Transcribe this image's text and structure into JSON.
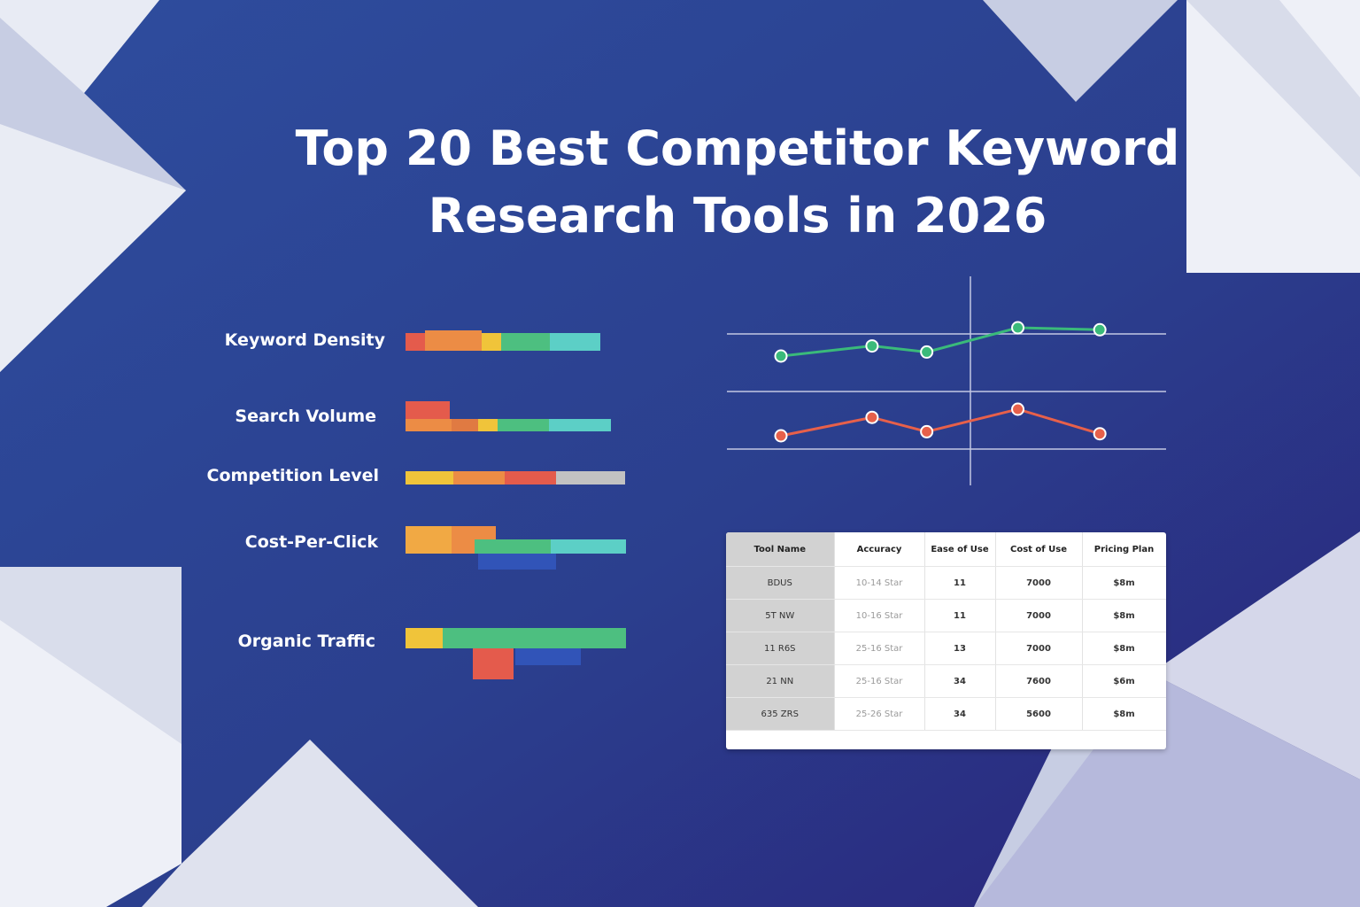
{
  "title": {
    "line1": "Top 20 Best Competitor Keyword",
    "line2": "Research Tools in 2026"
  },
  "colors": {
    "background": "#2c3f8f",
    "red": "#e45b4c",
    "orange": "#ec8c45",
    "yellow": "#f0c43a",
    "green": "#4dbf80",
    "teal": "#5ccfc6",
    "gray": "#c2c2c2",
    "blue": "#3154b8",
    "line_green": "#3aba7a",
    "line_red": "#e7604a"
  },
  "bars": [
    {
      "label": "Keyword Density"
    },
    {
      "label": "Search Volume"
    },
    {
      "label": "Competition Level"
    },
    {
      "label": "Cost-Per-Click"
    },
    {
      "label": "Organic Traffic"
    }
  ],
  "chart_data": {
    "type": "line",
    "series": [
      {
        "values": [
          1.0,
          1.5,
          1.2,
          2.4,
          2.3
        ],
        "color": "#3aba7a"
      },
      {
        "values": [
          1.0,
          1.9,
          1.2,
          2.3,
          1.1
        ],
        "color": "#e7604a"
      }
    ],
    "x_positions": [
      1,
      2,
      2.6,
      3.6,
      4.5
    ]
  },
  "table": {
    "headers": [
      "Tool Name",
      "Accuracy",
      "Ease of Use",
      "Cost of Use",
      "Pricing Plan"
    ],
    "rows": [
      [
        "BDUS",
        "10-14 Star",
        "11",
        "7000",
        "$8m"
      ],
      [
        "5T NW",
        "10-16 Star",
        "11",
        "7000",
        "$8m"
      ],
      [
        "11 R6S",
        "25-16 Star",
        "13",
        "7000",
        "$8m"
      ],
      [
        "21 NN",
        "25-16 Star",
        "34",
        "7600",
        "$6m"
      ],
      [
        "635 ZRS",
        "25-26 Star",
        "34",
        "5600",
        "$8m"
      ]
    ]
  }
}
